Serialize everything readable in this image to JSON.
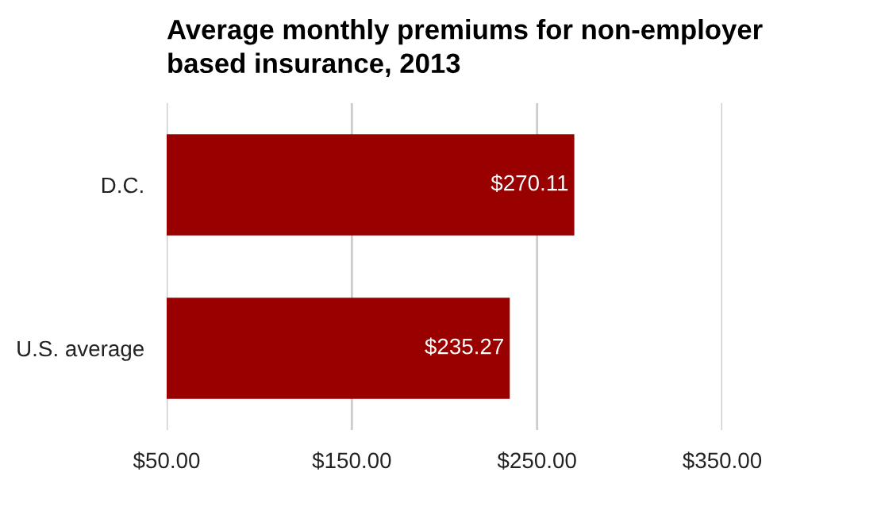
{
  "chart_data": {
    "type": "bar",
    "orientation": "horizontal",
    "title": "Average monthly premiums for non-employer\nbased insurance, 2013",
    "categories": [
      "D.C.",
      "U.S. average"
    ],
    "series": [
      {
        "color": "#990000",
        "values": [
          270.11,
          235.27
        ]
      }
    ],
    "value_labels": [
      "$270.11",
      "$235.27"
    ],
    "xlim": [
      50,
      350
    ],
    "xticks": [
      {
        "value": 50,
        "label": "$50.00"
      },
      {
        "value": 150,
        "label": "$150.00"
      },
      {
        "value": 250,
        "label": "$250.00"
      },
      {
        "value": 350,
        "label": "$350.00"
      }
    ],
    "grid": "x",
    "legend": false
  }
}
